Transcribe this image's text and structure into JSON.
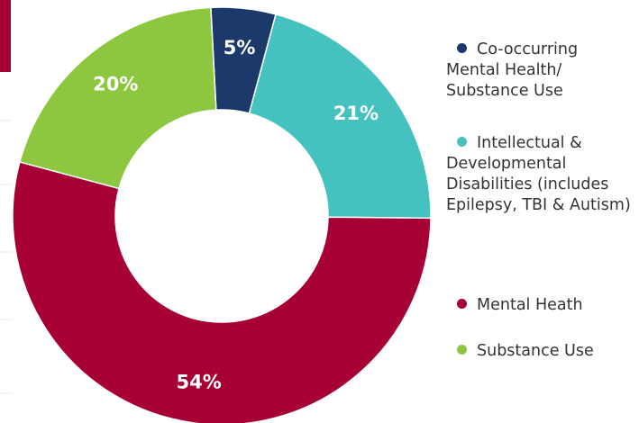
{
  "chart_data": {
    "type": "donut",
    "categories": [
      "Co-occurring Mental Health/ Substance Use",
      "Intellectual & Developmental Disabilities (includes Epilepsy, TBI & Autism)",
      "Mental Heath",
      "Substance Use"
    ],
    "values": [
      5,
      21,
      54,
      20
    ],
    "value_labels": [
      "5%",
      "21%",
      "54%",
      "20%"
    ],
    "colors": [
      "#1b3a6b",
      "#45c1bf",
      "#a60034",
      "#8dc63f"
    ],
    "legend": "right"
  }
}
